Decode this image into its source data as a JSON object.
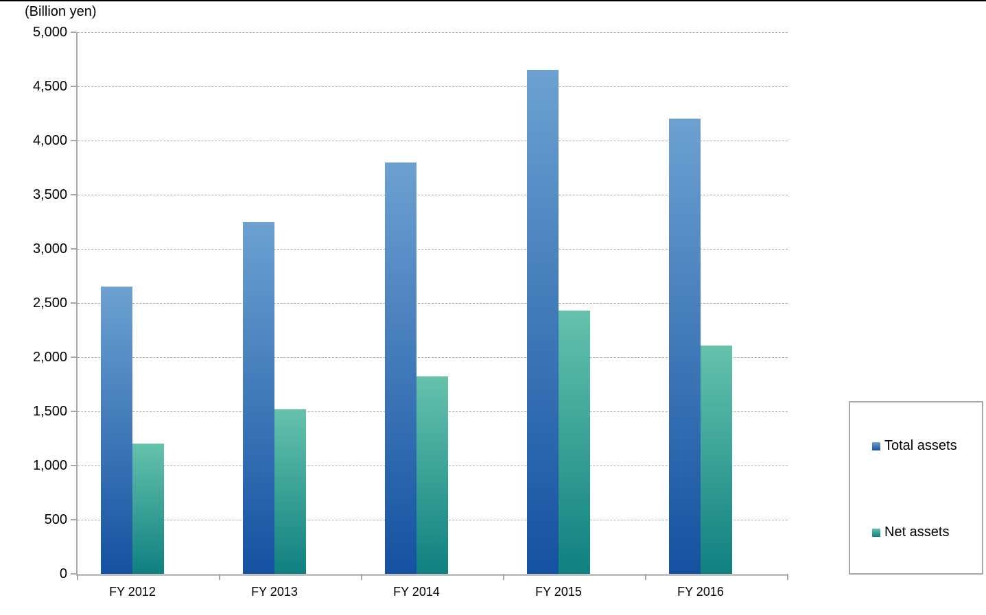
{
  "unit_label": "(Billion yen)",
  "colors": {
    "total_assets_top": "#6ca1d1",
    "total_assets_bottom": "#1551a1",
    "net_assets_top": "#65c2ac",
    "net_assets_bottom": "#0f8080",
    "axis": "#a6a6a6",
    "gridline": "#ababab",
    "legend_border": "#a6a6a6",
    "text": "#000000"
  },
  "chart_data": {
    "type": "bar",
    "title": "",
    "unit": "Billion yen",
    "categories": [
      "FY 2012",
      "FY 2013",
      "FY 2014",
      "FY 2015",
      "FY 2016"
    ],
    "series": [
      {
        "name": "Total assets",
        "values": [
          2650,
          3250,
          3800,
          4650,
          4200
        ],
        "color_top": "#6ca1d1",
        "color_bottom": "#1551a1"
      },
      {
        "name": "Net assets",
        "values": [
          1200,
          1520,
          1820,
          2430,
          2110
        ],
        "color_top": "#65c2ac",
        "color_bottom": "#0f8080"
      }
    ],
    "ylim": [
      0,
      5000
    ],
    "ytick_interval": 500,
    "ytick_labels": [
      "0",
      "500",
      "1,000",
      "1,500",
      "2,000",
      "2,500",
      "3,000",
      "3,500",
      "4,000",
      "4,500",
      "5,000"
    ],
    "grid": true,
    "legend_position": "right"
  }
}
